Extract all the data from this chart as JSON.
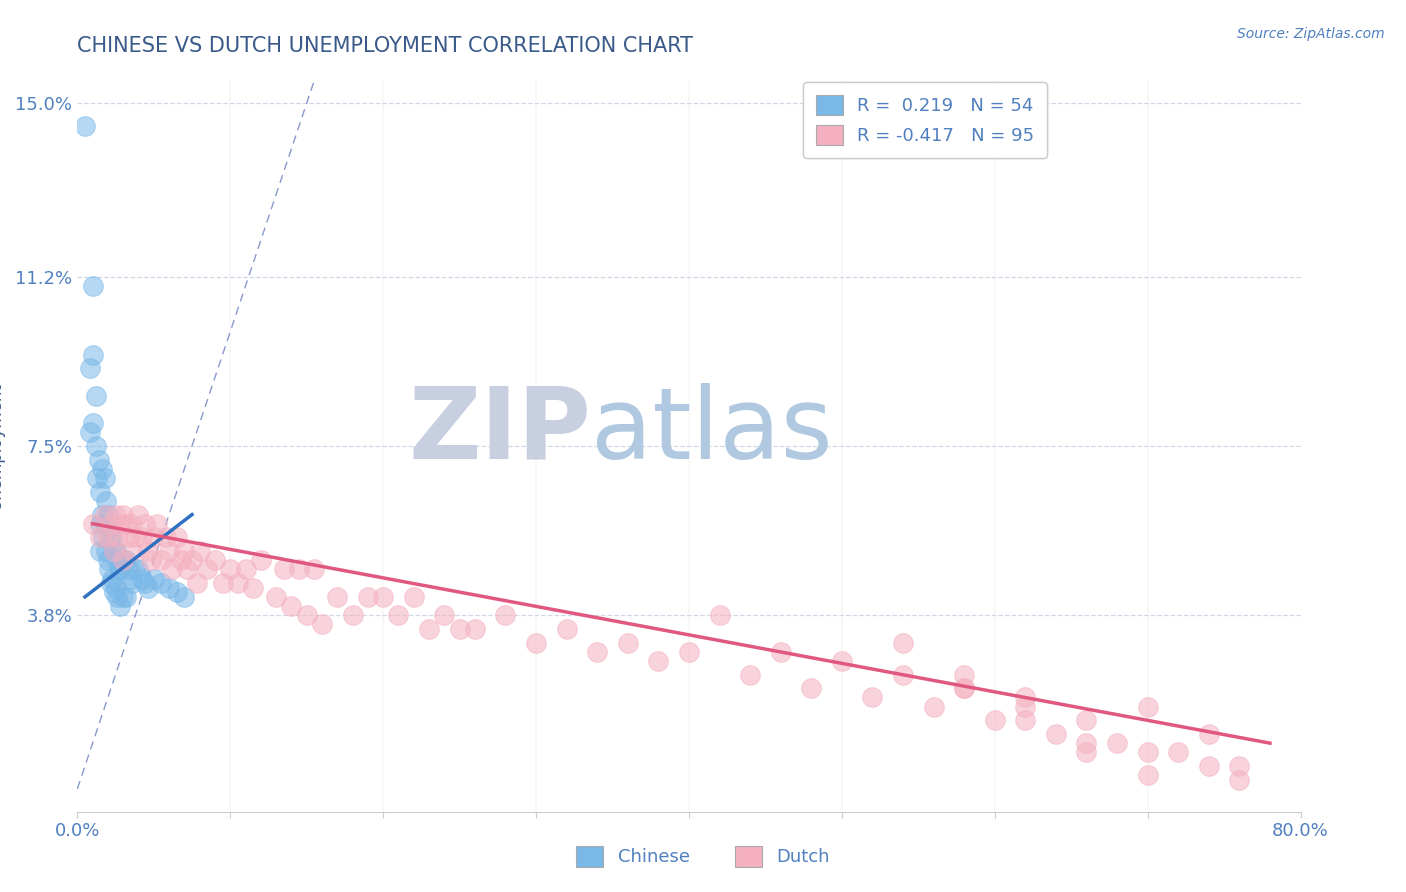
{
  "title": "CHINESE VS DUTCH UNEMPLOYMENT CORRELATION CHART",
  "source": "Source: ZipAtlas.com",
  "ylabel": "Unemployment",
  "xlim": [
    0,
    0.8
  ],
  "ylim": [
    -0.005,
    0.155
  ],
  "ytick_values": [
    0.038,
    0.075,
    0.112,
    0.15
  ],
  "ytick_labels": [
    "3.8%",
    "7.5%",
    "11.2%",
    "15.0%"
  ],
  "chinese_R": 0.219,
  "chinese_N": 54,
  "dutch_R": -0.417,
  "dutch_N": 95,
  "chinese_color": "#7ab8e8",
  "dutch_color": "#f4b0c0",
  "chinese_line_color": "#3070c0",
  "dutch_line_color": "#e05880",
  "ref_line_color": "#8899cc",
  "background_color": "#ffffff",
  "watermark_zip_color": "#c8cfe0",
  "watermark_atlas_color": "#b0c8e0",
  "title_color": "#3a5a8a",
  "axis_label_color": "#3a5a8a",
  "tick_label_color": "#5080c0",
  "grid_color": "#d0d8e8",
  "chinese_scatter_x": [
    0.005,
    0.008,
    0.008,
    0.01,
    0.01,
    0.01,
    0.012,
    0.012,
    0.013,
    0.014,
    0.015,
    0.015,
    0.015,
    0.016,
    0.016,
    0.017,
    0.018,
    0.018,
    0.019,
    0.019,
    0.02,
    0.02,
    0.021,
    0.021,
    0.022,
    0.022,
    0.023,
    0.023,
    0.024,
    0.024,
    0.025,
    0.025,
    0.026,
    0.026,
    0.027,
    0.028,
    0.028,
    0.03,
    0.03,
    0.032,
    0.032,
    0.034,
    0.035,
    0.036,
    0.038,
    0.04,
    0.042,
    0.044,
    0.046,
    0.05,
    0.055,
    0.06,
    0.065,
    0.07
  ],
  "chinese_scatter_y": [
    0.145,
    0.092,
    0.078,
    0.11,
    0.095,
    0.08,
    0.086,
    0.075,
    0.068,
    0.072,
    0.065,
    0.058,
    0.052,
    0.07,
    0.06,
    0.055,
    0.068,
    0.058,
    0.063,
    0.052,
    0.06,
    0.05,
    0.058,
    0.048,
    0.055,
    0.045,
    0.055,
    0.046,
    0.052,
    0.043,
    0.052,
    0.044,
    0.05,
    0.042,
    0.048,
    0.048,
    0.04,
    0.05,
    0.042,
    0.05,
    0.042,
    0.048,
    0.046,
    0.045,
    0.048,
    0.048,
    0.046,
    0.045,
    0.044,
    0.046,
    0.045,
    0.044,
    0.043,
    0.042
  ],
  "dutch_scatter_x": [
    0.01,
    0.015,
    0.018,
    0.02,
    0.022,
    0.024,
    0.025,
    0.026,
    0.028,
    0.03,
    0.03,
    0.032,
    0.034,
    0.035,
    0.036,
    0.038,
    0.04,
    0.042,
    0.044,
    0.046,
    0.048,
    0.05,
    0.052,
    0.055,
    0.058,
    0.06,
    0.062,
    0.065,
    0.068,
    0.07,
    0.072,
    0.075,
    0.078,
    0.08,
    0.085,
    0.09,
    0.095,
    0.1,
    0.105,
    0.11,
    0.115,
    0.12,
    0.13,
    0.135,
    0.14,
    0.145,
    0.15,
    0.155,
    0.16,
    0.17,
    0.18,
    0.19,
    0.2,
    0.21,
    0.22,
    0.23,
    0.24,
    0.25,
    0.26,
    0.28,
    0.3,
    0.32,
    0.34,
    0.36,
    0.38,
    0.4,
    0.42,
    0.44,
    0.46,
    0.48,
    0.5,
    0.52,
    0.54,
    0.56,
    0.58,
    0.6,
    0.62,
    0.64,
    0.66,
    0.68,
    0.7,
    0.72,
    0.74,
    0.76,
    0.58,
    0.62,
    0.66,
    0.7,
    0.74,
    0.76,
    0.54,
    0.58,
    0.62,
    0.66,
    0.7
  ],
  "dutch_scatter_y": [
    0.058,
    0.055,
    0.06,
    0.055,
    0.058,
    0.052,
    0.06,
    0.055,
    0.058,
    0.06,
    0.05,
    0.058,
    0.055,
    0.058,
    0.052,
    0.055,
    0.06,
    0.055,
    0.058,
    0.052,
    0.05,
    0.055,
    0.058,
    0.05,
    0.055,
    0.052,
    0.048,
    0.055,
    0.05,
    0.052,
    0.048,
    0.05,
    0.045,
    0.052,
    0.048,
    0.05,
    0.045,
    0.048,
    0.045,
    0.048,
    0.044,
    0.05,
    0.042,
    0.048,
    0.04,
    0.048,
    0.038,
    0.048,
    0.036,
    0.042,
    0.038,
    0.042,
    0.042,
    0.038,
    0.042,
    0.035,
    0.038,
    0.035,
    0.035,
    0.038,
    0.032,
    0.035,
    0.03,
    0.032,
    0.028,
    0.03,
    0.038,
    0.025,
    0.03,
    0.022,
    0.028,
    0.02,
    0.025,
    0.018,
    0.022,
    0.015,
    0.02,
    0.012,
    0.015,
    0.01,
    0.018,
    0.008,
    0.012,
    0.005,
    0.025,
    0.018,
    0.01,
    0.008,
    0.005,
    0.002,
    0.032,
    0.022,
    0.015,
    0.008,
    0.003
  ],
  "chinese_line_x": [
    0.005,
    0.075
  ],
  "chinese_line_y": [
    0.042,
    0.06
  ],
  "dutch_line_x": [
    0.01,
    0.78
  ],
  "dutch_line_y": [
    0.058,
    0.01
  ]
}
